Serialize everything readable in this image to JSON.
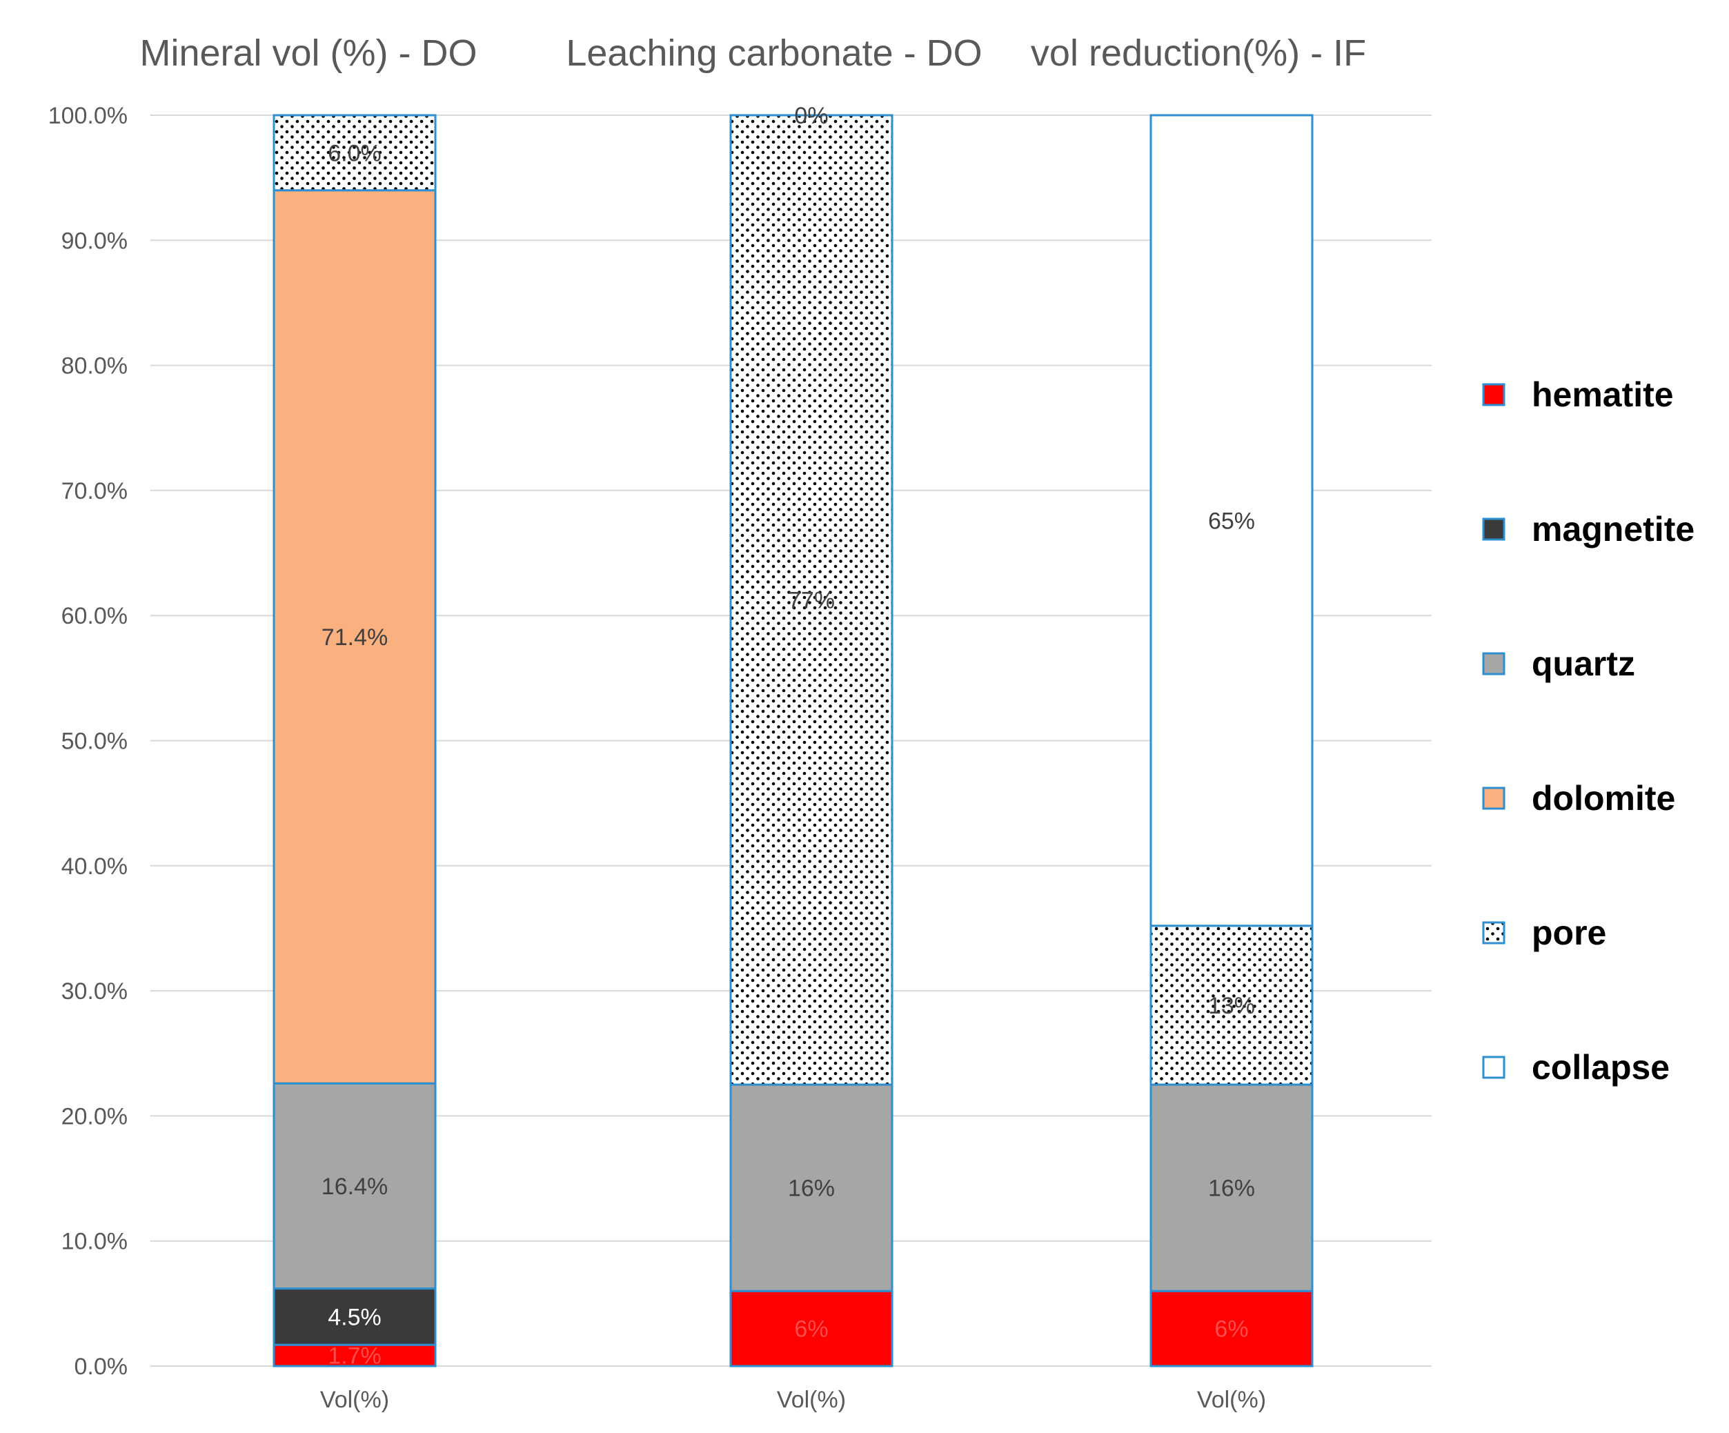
{
  "chart_data": {
    "type": "stacked-bar",
    "y_axis": {
      "min": 0,
      "max": 100,
      "step": 10,
      "tick_labels": [
        "0.0%",
        "10.0%",
        "20.0%",
        "30.0%",
        "40.0%",
        "50.0%",
        "60.0%",
        "70.0%",
        "80.0%",
        "90.0%",
        "100.0%"
      ]
    },
    "panels": [
      {
        "title": "Mineral vol (%) - DO",
        "category": "Vol(%)",
        "segments": [
          {
            "series": "hematite",
            "value": 1.7,
            "label": "1.7%"
          },
          {
            "series": "magnetite",
            "value": 4.5,
            "label": "4.5%"
          },
          {
            "series": "quartz",
            "value": 16.4,
            "label": "16.4%"
          },
          {
            "series": "dolomite",
            "value": 71.4,
            "label": "71.4%"
          },
          {
            "series": "pore",
            "value": 6.0,
            "label": "6.0%"
          }
        ]
      },
      {
        "title": "Leaching carbonate - DO",
        "category": "Vol(%)",
        "segments": [
          {
            "series": "hematite",
            "value": 6,
            "label": "6%"
          },
          {
            "series": "quartz",
            "value": 16.5,
            "label": "16%"
          },
          {
            "series": "pore",
            "value": 77.5,
            "label": "77%"
          },
          {
            "series": "collapse",
            "value": 0,
            "label": "0%"
          }
        ]
      },
      {
        "title": "vol reduction(%) - IF",
        "category": "Vol(%)",
        "segments": [
          {
            "series": "hematite",
            "value": 6,
            "label": "6%"
          },
          {
            "series": "quartz",
            "value": 16.5,
            "label": "16%"
          },
          {
            "series": "pore",
            "value": 12.7,
            "label": "13%"
          },
          {
            "series": "collapse",
            "value": 64.8,
            "label": "65%"
          }
        ]
      }
    ],
    "legend": {
      "position": "right",
      "entries": [
        "hematite",
        "magnetite",
        "quartz",
        "dolomite",
        "pore",
        "collapse"
      ]
    },
    "series_styles": {
      "hematite": {
        "fill": "#ff0000",
        "pattern": "solid",
        "label_color": "#ff4d4d"
      },
      "magnetite": {
        "fill": "#3a3a3a",
        "pattern": "solid",
        "label_color": "#ffffff"
      },
      "quartz": {
        "fill": "#a6a6a6",
        "pattern": "solid",
        "label_color": "#404040"
      },
      "dolomite": {
        "fill": "#fbb07f",
        "pattern": "solid",
        "label_color": "#404040"
      },
      "pore": {
        "fill": "#ffffff",
        "pattern": "dots",
        "label_color": "#404040"
      },
      "collapse": {
        "fill": "#ffffff",
        "pattern": "solid",
        "label_color": "#404040"
      }
    },
    "colors": {
      "bar_outline": "#2e8fd0",
      "gridline": "#d9d9d9",
      "axis_text": "#595959",
      "title_text": "#595959",
      "legend_text": "#000000"
    },
    "grid": true
  }
}
